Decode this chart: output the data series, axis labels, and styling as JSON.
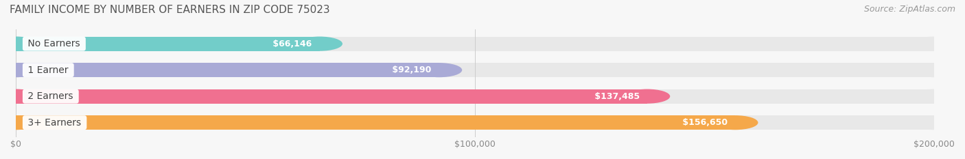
{
  "title": "FAMILY INCOME BY NUMBER OF EARNERS IN ZIP CODE 75023",
  "source": "Source: ZipAtlas.com",
  "categories": [
    "No Earners",
    "1 Earner",
    "2 Earners",
    "3+ Earners"
  ],
  "values": [
    66146,
    92190,
    137485,
    156650
  ],
  "bar_colors": [
    "#72cdc9",
    "#a9aad6",
    "#f07090",
    "#f5a84a"
  ],
  "value_labels": [
    "$66,146",
    "$92,190",
    "$137,485",
    "$156,650"
  ],
  "xlim": [
    0,
    200000
  ],
  "xticks": [
    0,
    100000,
    200000
  ],
  "xtick_labels": [
    "$0",
    "$100,000",
    "$200,000"
  ],
  "background_color": "#f7f7f7",
  "bar_bg_color": "#e8e8e8",
  "title_fontsize": 11,
  "source_fontsize": 9,
  "label_fontsize": 10,
  "value_fontsize": 9,
  "bar_height": 0.55,
  "bar_gap": 1.0
}
